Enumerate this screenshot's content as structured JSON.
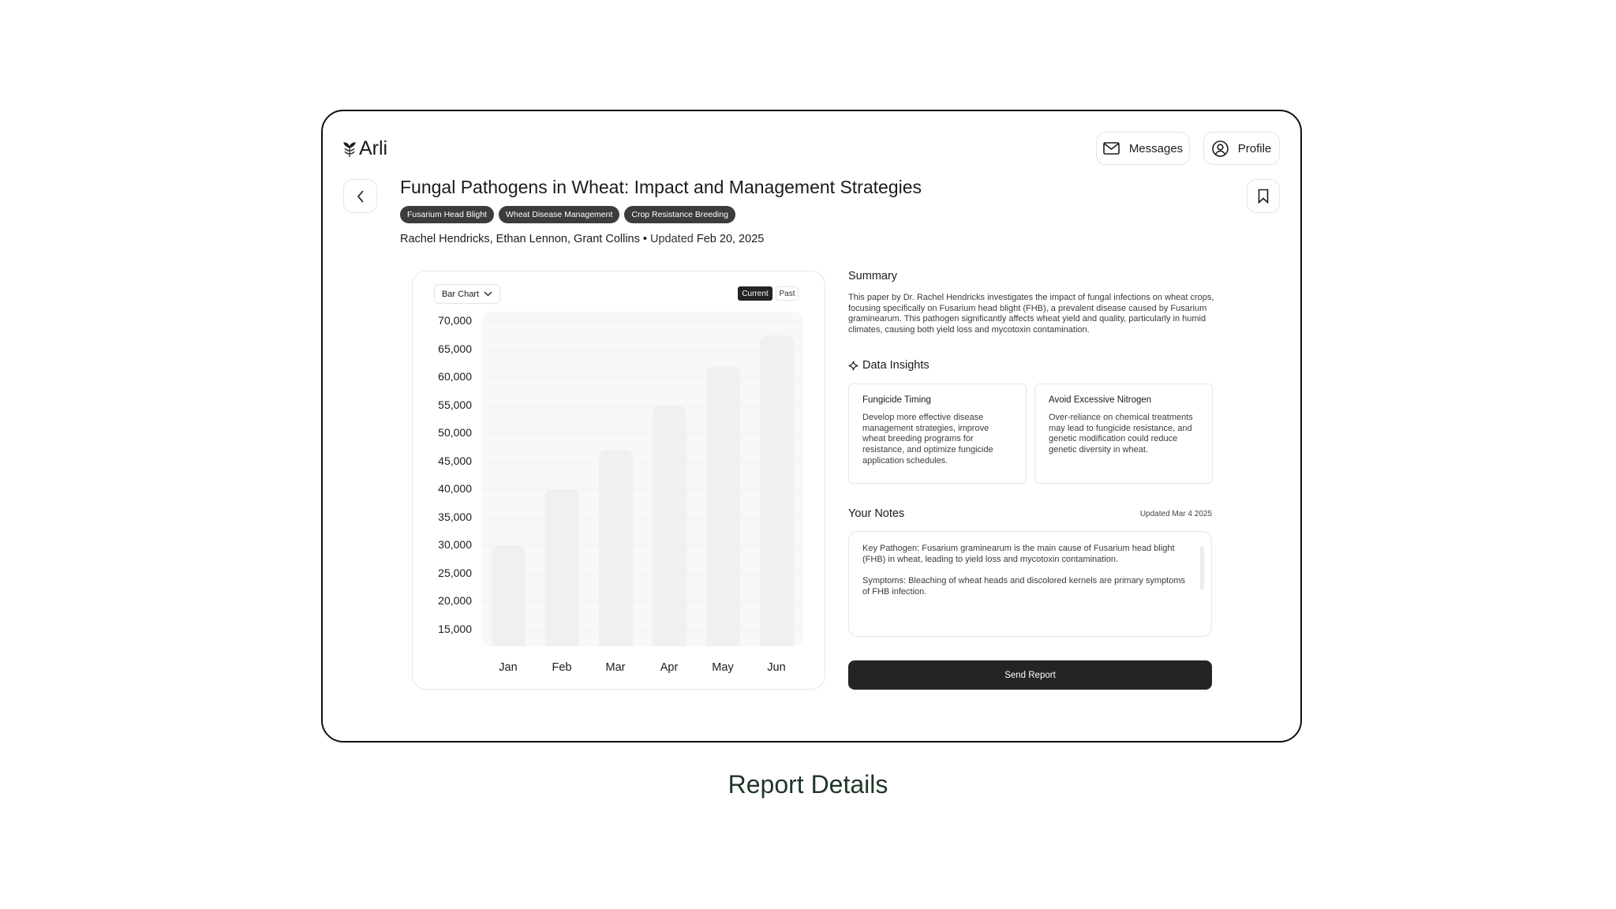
{
  "app": {
    "logo_text": "Arli"
  },
  "header": {
    "messages_label": "Messages",
    "profile_label": "Profile"
  },
  "report": {
    "title": "Fungal Pathogens in Wheat: Impact and Management Strategies",
    "tags": [
      "Fusarium Head Blight",
      "Wheat Disease Management",
      "Crop Resistance Breeding"
    ],
    "authors": "Rachel Hendricks, Ethan Lennon, Grant Collins",
    "updated_prefix": "Updated",
    "updated_date": "Feb 20, 2025"
  },
  "chart_controls": {
    "chart_type": "Bar Chart",
    "toggle": [
      "Current",
      "Past"
    ],
    "active_toggle": "Current"
  },
  "chart_data": {
    "type": "bar",
    "categories": [
      "Jan",
      "Feb",
      "Mar",
      "Apr",
      "May",
      "Jun"
    ],
    "values": [
      30000,
      40000,
      47000,
      55000,
      62000,
      67500
    ],
    "yticks": [
      "70,000",
      "65,000",
      "60,000",
      "55,000",
      "50,000",
      "45,000",
      "40,000",
      "35,000",
      "30,000",
      "25,000",
      "20,000",
      "15,000"
    ],
    "ytick_values": [
      70000,
      65000,
      60000,
      55000,
      50000,
      45000,
      40000,
      35000,
      30000,
      25000,
      20000,
      15000
    ],
    "ylim": [
      12000,
      71700
    ],
    "grid": true,
    "bar_color": "#f0f0f0"
  },
  "summary": {
    "heading": "Summary",
    "text": "This paper by Dr. Rachel Hendricks investigates the impact of fungal infections on wheat crops, focusing specifically on Fusarium head blight (FHB), a prevalent disease caused by Fusarium graminearum. This pathogen significantly affects wheat yield and quality, particularly in humid climates, causing both yield loss and mycotoxin contamination."
  },
  "insights": {
    "heading": "Data Insights",
    "icon": "sparkle-icon",
    "cards": [
      {
        "title": "Fungicide Timing",
        "text": "Develop more effective disease management strategies, improve wheat breeding programs for resistance, and optimize fungicide application schedules."
      },
      {
        "title": "Avoid Excessive Nitrogen",
        "text": "Over-reliance on chemical treatments may lead to fungicide resistance, and genetic modification could reduce genetic diversity in wheat."
      }
    ]
  },
  "notes": {
    "heading": "Your Notes",
    "updated": "Updated Mar 4 2025",
    "paragraphs": [
      "Key Pathogen: Fusarium graminearum is the main cause of Fusarium head blight (FHB) in wheat, leading to yield loss and mycotoxin contamination.",
      "Symptoms: Bleaching of wheat heads and discolored kernels are primary symptoms of FHB infection."
    ]
  },
  "send_label": "Send Report",
  "caption": "Report Details",
  "colors": {
    "caption": "#1f3527",
    "primary_button": "#242424",
    "tag": "#3c3c3c"
  }
}
